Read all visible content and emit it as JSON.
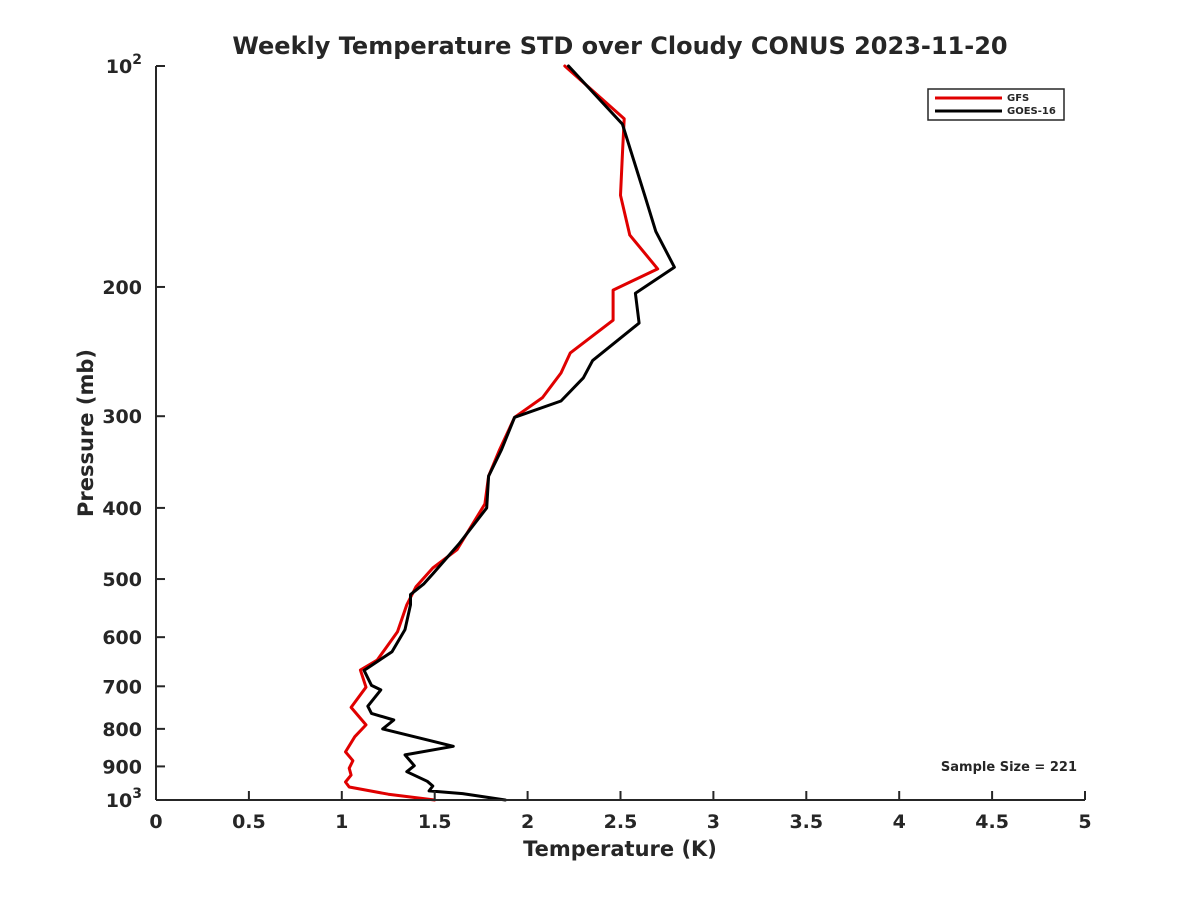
{
  "chart_data": {
    "type": "line",
    "title": "Weekly Temperature STD over Cloudy CONUS 2023-11-20",
    "xlabel": "Temperature (K)",
    "ylabel": "Pressure (mb)",
    "xlim": [
      0,
      5
    ],
    "ylim": [
      100,
      1000
    ],
    "y_scale": "log",
    "y_reversed": true,
    "grid": false,
    "legend_position": "top-right",
    "x_ticks": [
      {
        "value": 0,
        "label": "0"
      },
      {
        "value": 0.5,
        "label": "0.5"
      },
      {
        "value": 1,
        "label": "1"
      },
      {
        "value": 1.5,
        "label": "1.5"
      },
      {
        "value": 2,
        "label": "2"
      },
      {
        "value": 2.5,
        "label": "2.5"
      },
      {
        "value": 3,
        "label": "3"
      },
      {
        "value": 3.5,
        "label": "3.5"
      },
      {
        "value": 4,
        "label": "4"
      },
      {
        "value": 4.5,
        "label": "4.5"
      },
      {
        "value": 5,
        "label": "5"
      }
    ],
    "y_ticks": [
      {
        "value": 100,
        "base": "10",
        "exp": "2"
      },
      {
        "value": 200,
        "base": "200",
        "exp": ""
      },
      {
        "value": 300,
        "base": "300",
        "exp": ""
      },
      {
        "value": 400,
        "base": "400",
        "exp": ""
      },
      {
        "value": 500,
        "base": "500",
        "exp": ""
      },
      {
        "value": 600,
        "base": "600",
        "exp": ""
      },
      {
        "value": 700,
        "base": "700",
        "exp": ""
      },
      {
        "value": 800,
        "base": "800",
        "exp": ""
      },
      {
        "value": 900,
        "base": "900",
        "exp": ""
      },
      {
        "value": 1000,
        "base": "10",
        "exp": "3"
      }
    ],
    "series": [
      {
        "name": "GFS",
        "color": "#e00000",
        "points": [
          [
            2.2,
            100
          ],
          [
            2.52,
            118
          ],
          [
            2.51,
            132
          ],
          [
            2.5,
            150
          ],
          [
            2.55,
            170
          ],
          [
            2.7,
            189
          ],
          [
            2.46,
            202
          ],
          [
            2.46,
            222
          ],
          [
            2.23,
            246
          ],
          [
            2.18,
            262
          ],
          [
            2.08,
            283
          ],
          [
            1.93,
            301
          ],
          [
            1.85,
            333
          ],
          [
            1.79,
            362
          ],
          [
            1.77,
            395
          ],
          [
            1.62,
            456
          ],
          [
            1.49,
            483
          ],
          [
            1.4,
            512
          ],
          [
            1.35,
            542
          ],
          [
            1.3,
            590
          ],
          [
            1.19,
            645
          ],
          [
            1.1,
            665
          ],
          [
            1.13,
            702
          ],
          [
            1.05,
            748
          ],
          [
            1.13,
            790
          ],
          [
            1.07,
            820
          ],
          [
            1.02,
            860
          ],
          [
            1.06,
            884
          ],
          [
            1.04,
            905
          ],
          [
            1.05,
            925
          ],
          [
            1.02,
            945
          ],
          [
            1.04,
            960
          ],
          [
            1.25,
            982
          ],
          [
            1.5,
            1000
          ]
        ]
      },
      {
        "name": "GOES-16",
        "color": "#000000",
        "points": [
          [
            2.22,
            100
          ],
          [
            2.51,
            120
          ],
          [
            2.63,
            150
          ],
          [
            2.69,
            168
          ],
          [
            2.79,
            188
          ],
          [
            2.58,
            204
          ],
          [
            2.6,
            224
          ],
          [
            2.35,
            252
          ],
          [
            2.3,
            266
          ],
          [
            2.18,
            286
          ],
          [
            1.93,
            301
          ],
          [
            1.86,
            333
          ],
          [
            1.79,
            362
          ],
          [
            1.78,
            400
          ],
          [
            1.63,
            448
          ],
          [
            1.49,
            492
          ],
          [
            1.44,
            508
          ],
          [
            1.37,
            525
          ],
          [
            1.37,
            542
          ],
          [
            1.34,
            586
          ],
          [
            1.27,
            628
          ],
          [
            1.12,
            666
          ],
          [
            1.16,
            698
          ],
          [
            1.21,
            708
          ],
          [
            1.14,
            745
          ],
          [
            1.16,
            762
          ],
          [
            1.28,
            778
          ],
          [
            1.22,
            800
          ],
          [
            1.6,
            845
          ],
          [
            1.34,
            868
          ],
          [
            1.39,
            898
          ],
          [
            1.35,
            915
          ],
          [
            1.46,
            943
          ],
          [
            1.49,
            957
          ],
          [
            1.47,
            972
          ],
          [
            1.65,
            980
          ],
          [
            1.88,
            1000
          ]
        ]
      }
    ],
    "annotation": "Sample Size = 221"
  }
}
